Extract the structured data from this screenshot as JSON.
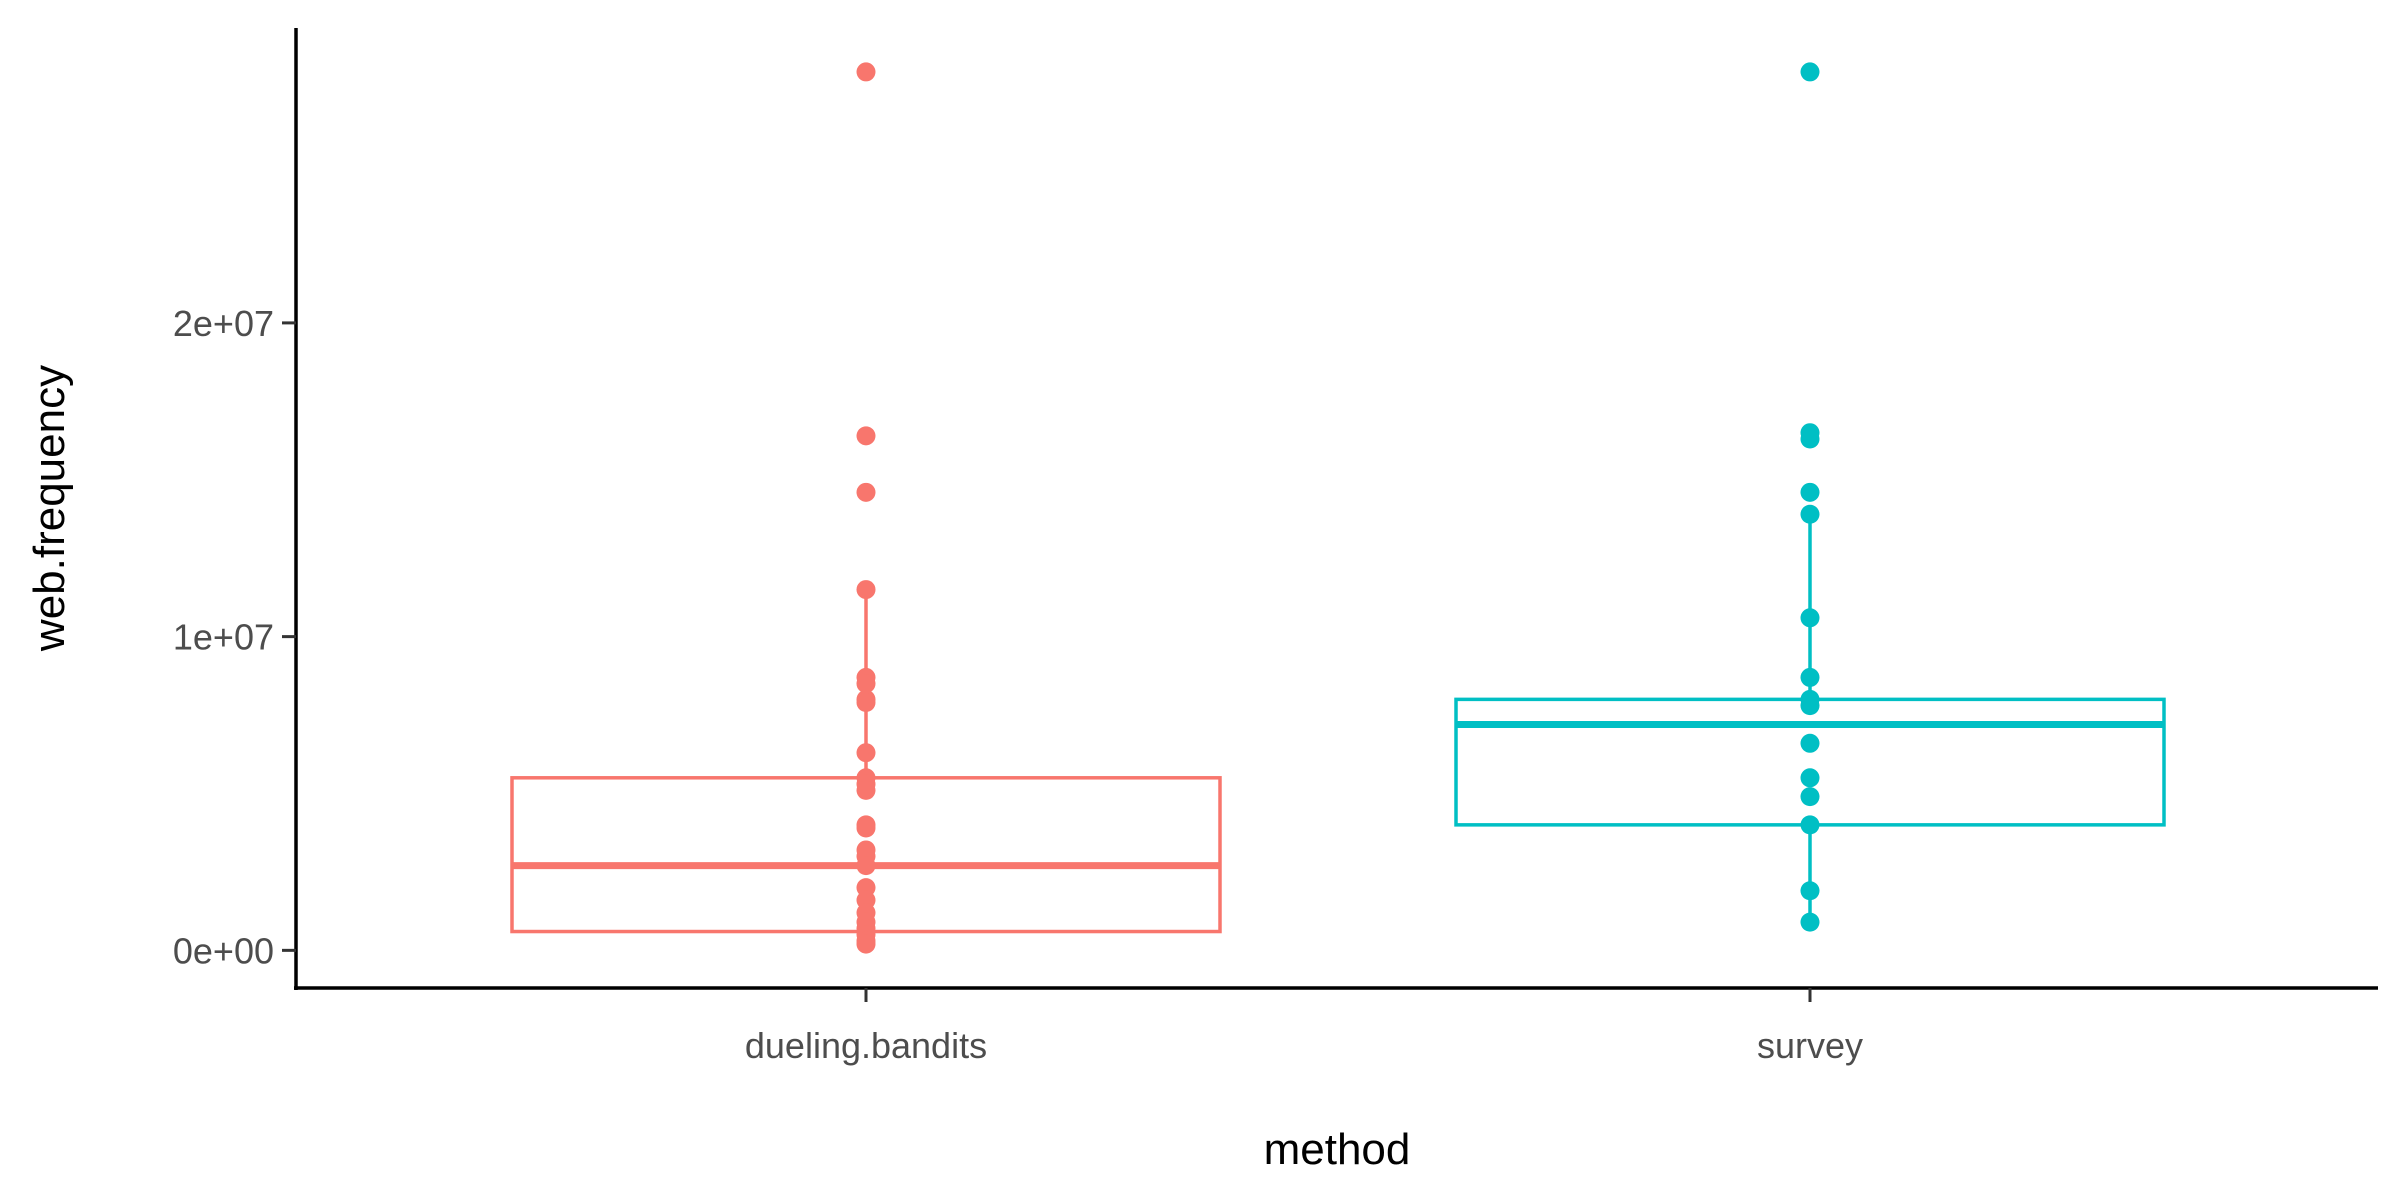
{
  "chart_data": {
    "type": "box",
    "xlabel": "method",
    "ylabel": "web.frequency",
    "ylim": [
      -1200000,
      29400000
    ],
    "yticks": [
      {
        "value": 0,
        "label": "0e+00"
      },
      {
        "value": 10000000,
        "label": "1e+07"
      },
      {
        "value": 20000000,
        "label": "2e+07"
      }
    ],
    "categories": [
      "dueling.bandits",
      "survey"
    ],
    "grid": false,
    "legend": "none",
    "series": [
      {
        "category": "dueling.bandits",
        "color": "#F8766D",
        "box": {
          "whisker_low": 200000,
          "q1": 600000,
          "median": 2700000,
          "q3": 5500000,
          "whisker_high": 11500000
        },
        "points": [
          28000000,
          16400000,
          14600000,
          11500000,
          8700000,
          8500000,
          8000000,
          7900000,
          6300000,
          5500000,
          5300000,
          5100000,
          4000000,
          3900000,
          3200000,
          3000000,
          2700000,
          2000000,
          1600000,
          1200000,
          900000,
          700000,
          500000,
          300000,
          200000
        ]
      },
      {
        "category": "survey",
        "color": "#00BFC4",
        "box": {
          "whisker_low": 900000,
          "q1": 4000000,
          "median": 7200000,
          "q3": 8000000,
          "whisker_high": 13900000
        },
        "points": [
          28000000,
          16500000,
          16300000,
          14600000,
          13900000,
          10600000,
          8700000,
          8000000,
          7800000,
          6600000,
          5500000,
          4900000,
          4000000,
          1900000,
          900000
        ]
      }
    ]
  }
}
